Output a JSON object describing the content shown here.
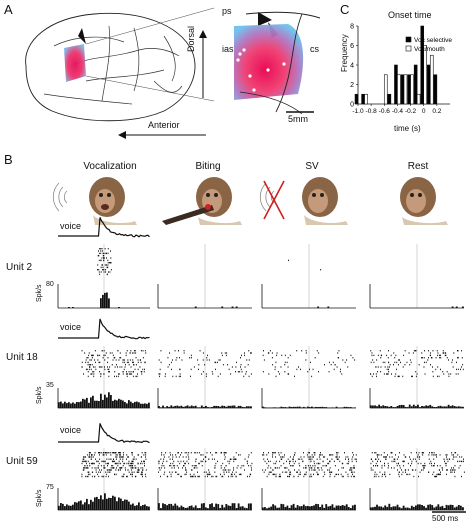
{
  "panels": {
    "a": "A",
    "b": "B",
    "c": "C"
  },
  "panelA": {
    "labels": {
      "ps": "ps",
      "ias": "ias",
      "cs": "cs",
      "dorsal": "Dorsal",
      "anterior": "Anterior",
      "scale": "5mm"
    }
  },
  "conditions": [
    "Vocalization",
    "Biting",
    "SV",
    "Rest"
  ],
  "voice_label": "voice",
  "units": [
    {
      "name": "Unit 2",
      "ymax": "80",
      "ylabel": "Spk/s"
    },
    {
      "name": "Unit 18",
      "ymax": "35",
      "ylabel": "Spk/s"
    },
    {
      "name": "Unit 59",
      "ymax": "75",
      "ylabel": "Spk/s"
    }
  ],
  "scalebar": "500 ms",
  "chart_data": {
    "type": "bar",
    "title": "Onset time",
    "xlabel": "time (s)",
    "ylabel": "Frequency",
    "xlim": [
      -1.0,
      0.4
    ],
    "ylim": [
      0,
      8
    ],
    "xticks": [
      "-1.0",
      "-0.8",
      "-0.6",
      "-0.4",
      "-0.2",
      "0",
      "0.2"
    ],
    "yticks": [
      "0",
      "2",
      "4",
      "6",
      "8"
    ],
    "legend_position": "center-right",
    "series": [
      {
        "name": "Voc selective",
        "color": "#000000",
        "x": [
          -1.0,
          -0.9,
          -0.6,
          -0.5,
          -0.4,
          -0.3,
          -0.2,
          -0.1,
          0.0,
          0.1,
          0.2
        ],
        "values": [
          1,
          1,
          0,
          1,
          4,
          3,
          3,
          4,
          8,
          4,
          3
        ]
      },
      {
        "name": "Voc/mouth",
        "color": "#ffffff",
        "x": [
          -1.0,
          -0.9,
          -0.6,
          -0.5,
          -0.4,
          -0.3,
          -0.2,
          -0.1,
          0.0,
          0.1,
          0.2
        ],
        "values": [
          0,
          1,
          3,
          0,
          3,
          3,
          3,
          1,
          6,
          5,
          0
        ]
      }
    ]
  }
}
